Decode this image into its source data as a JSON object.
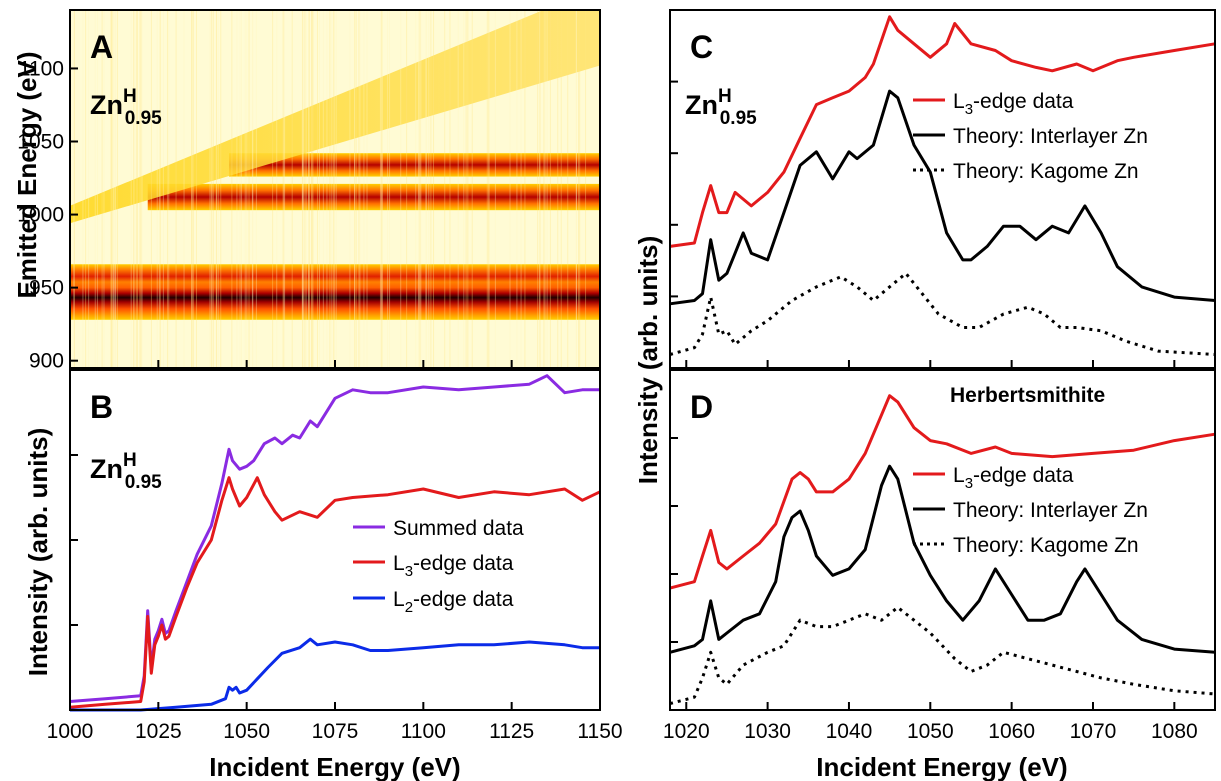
{
  "figure": {
    "ylabel_left_top": "Emitted Energy (eV)",
    "ylabel_left_bottom": "Intensity (arb. units)",
    "ylabel_right": "Intensity (arb. units)",
    "xlabel_left": "Incident Energy (eV)",
    "xlabel_right": "Incident Energy (eV)"
  },
  "panels": {
    "A": {
      "letter": "A",
      "sample_base": "Zn",
      "sample_sup": "H",
      "sample_sub": "0.95"
    },
    "B": {
      "letter": "B",
      "sample_base": "Zn",
      "sample_sup": "H",
      "sample_sub": "0.95"
    },
    "C": {
      "letter": "C",
      "sample_base": "Zn",
      "sample_sup": "H",
      "sample_sub": "0.95"
    },
    "D": {
      "letter": "D",
      "title": "Herbertsmithite"
    }
  },
  "chart_data": [
    {
      "panel": "A",
      "type": "heatmap",
      "xlim": [
        1000,
        1150
      ],
      "ylim": [
        895,
        1140
      ],
      "x_ticks": [
        "1000",
        "1025",
        "1050",
        "1075",
        "1100",
        "1125",
        "1150"
      ],
      "y_ticks": [
        "900",
        "950",
        "1000",
        "1050",
        "1100"
      ],
      "y_tick_values": [
        900,
        950,
        1000,
        1050,
        1100
      ],
      "colormap": [
        "#fffde0",
        "#ffe000",
        "#ff8000",
        "#e00000",
        "#200000"
      ],
      "features": [
        {
          "kind": "elastic_line",
          "x": [
            1000,
            1150
          ],
          "y": [
            1000,
            1150
          ]
        },
        {
          "kind": "band",
          "center": 939,
          "width": 8,
          "x_start": 1000,
          "intensity": 1.0
        },
        {
          "kind": "band",
          "center": 958,
          "width": 8,
          "x_start": 1000,
          "intensity": 0.8
        },
        {
          "kind": "band",
          "center": 1012,
          "width": 6,
          "x_start": 1022,
          "intensity": 0.85
        },
        {
          "kind": "band",
          "center": 1034,
          "width": 6,
          "x_start": 1045,
          "intensity": 0.75
        }
      ]
    },
    {
      "panel": "B",
      "type": "line",
      "xlim": [
        1000,
        1150
      ],
      "ylim": [
        0,
        1.2
      ],
      "x_ticks": [
        "1000",
        "1025",
        "1050",
        "1075",
        "1100",
        "1125",
        "1150"
      ],
      "x_tick_values": [
        1000,
        1025,
        1050,
        1075,
        1100,
        1125,
        1150
      ],
      "legend_position": "middle-right",
      "series": [
        {
          "name": "Summed data",
          "color": "#8a2be2",
          "x": [
            1000,
            1010,
            1020,
            1021,
            1022,
            1023,
            1024,
            1025,
            1026,
            1027,
            1028,
            1030,
            1033,
            1036,
            1040,
            1043,
            1045,
            1046,
            1048,
            1050,
            1052,
            1055,
            1058,
            1060,
            1063,
            1065,
            1068,
            1070,
            1075,
            1080,
            1085,
            1090,
            1100,
            1110,
            1120,
            1130,
            1135,
            1140,
            1145,
            1150
          ],
          "y": [
            0.03,
            0.04,
            0.05,
            0.12,
            0.35,
            0.15,
            0.25,
            0.28,
            0.32,
            0.27,
            0.28,
            0.35,
            0.45,
            0.55,
            0.65,
            0.8,
            0.92,
            0.88,
            0.85,
            0.86,
            0.88,
            0.94,
            0.96,
            0.94,
            0.97,
            0.96,
            1.02,
            1.0,
            1.1,
            1.13,
            1.12,
            1.12,
            1.14,
            1.13,
            1.14,
            1.15,
            1.18,
            1.12,
            1.13,
            1.13
          ]
        },
        {
          "name": "L3-edge data",
          "label_main": "L",
          "label_sub": "3",
          "label_rest": "-edge data",
          "color": "#e31a1c",
          "x": [
            1000,
            1010,
            1020,
            1021,
            1022,
            1023,
            1024,
            1025,
            1026,
            1027,
            1028,
            1030,
            1033,
            1036,
            1040,
            1043,
            1045,
            1046,
            1048,
            1050,
            1053,
            1055,
            1058,
            1060,
            1065,
            1070,
            1075,
            1080,
            1090,
            1100,
            1110,
            1120,
            1130,
            1140,
            1145,
            1150
          ],
          "y": [
            0.01,
            0.02,
            0.03,
            0.1,
            0.33,
            0.13,
            0.23,
            0.26,
            0.3,
            0.25,
            0.26,
            0.33,
            0.43,
            0.52,
            0.6,
            0.74,
            0.82,
            0.78,
            0.72,
            0.75,
            0.82,
            0.76,
            0.7,
            0.67,
            0.7,
            0.68,
            0.74,
            0.75,
            0.76,
            0.78,
            0.75,
            0.77,
            0.76,
            0.78,
            0.74,
            0.77
          ]
        },
        {
          "name": "L2-edge data",
          "label_main": "L",
          "label_sub": "2",
          "label_rest": "-edge data",
          "color": "#0b2be8",
          "x": [
            1000,
            1020,
            1030,
            1040,
            1044,
            1045,
            1046,
            1047,
            1048,
            1050,
            1053,
            1056,
            1060,
            1065,
            1068,
            1070,
            1075,
            1080,
            1085,
            1090,
            1100,
            1110,
            1120,
            1130,
            1140,
            1145,
            1150
          ],
          "y": [
            0.0,
            0.0,
            0.01,
            0.02,
            0.04,
            0.08,
            0.07,
            0.08,
            0.06,
            0.07,
            0.11,
            0.15,
            0.2,
            0.22,
            0.25,
            0.23,
            0.24,
            0.23,
            0.21,
            0.21,
            0.22,
            0.23,
            0.23,
            0.24,
            0.23,
            0.22,
            0.22
          ]
        }
      ]
    },
    {
      "panel": "C",
      "type": "line",
      "xlim": [
        1018,
        1085
      ],
      "ylim": [
        0,
        5.3
      ],
      "x_ticks": [
        "1020",
        "1030",
        "1040",
        "1050",
        "1060",
        "1070",
        "1080"
      ],
      "x_tick_values": [
        1020,
        1030,
        1040,
        1050,
        1060,
        1070,
        1080
      ],
      "legend_position": "top-right",
      "series": [
        {
          "name": "L3-edge data",
          "label_main": "L",
          "label_sub": "3",
          "label_rest": "-edge data",
          "color": "#e31a1c",
          "x": [
            1018,
            1021,
            1022,
            1023,
            1024,
            1025,
            1026,
            1027,
            1028,
            1030,
            1032,
            1034,
            1036,
            1038,
            1040,
            1042,
            1043,
            1045,
            1046,
            1048,
            1050,
            1052,
            1053,
            1055,
            1058,
            1060,
            1063,
            1065,
            1068,
            1070,
            1073,
            1075,
            1080,
            1085
          ],
          "y": [
            1.8,
            1.85,
            2.3,
            2.7,
            2.3,
            2.3,
            2.6,
            2.5,
            2.4,
            2.6,
            2.9,
            3.4,
            3.9,
            4.0,
            4.1,
            4.3,
            4.5,
            5.2,
            5.0,
            4.8,
            4.6,
            4.8,
            5.1,
            4.8,
            4.7,
            4.55,
            4.45,
            4.4,
            4.5,
            4.4,
            4.55,
            4.6,
            4.7,
            4.8
          ]
        },
        {
          "name": "Theory: Interlayer Zn",
          "color": "#000000",
          "x": [
            1018,
            1021,
            1022,
            1023,
            1024,
            1025,
            1026,
            1027,
            1028,
            1030,
            1032,
            1034,
            1036,
            1038,
            1040,
            1041,
            1043,
            1045,
            1046,
            1048,
            1050,
            1052,
            1054,
            1055,
            1057,
            1059,
            1061,
            1063,
            1065,
            1067,
            1069,
            1071,
            1073,
            1076,
            1080,
            1085
          ],
          "y": [
            0.95,
            1.0,
            1.1,
            1.9,
            1.3,
            1.4,
            1.7,
            2.0,
            1.7,
            1.6,
            2.3,
            3.0,
            3.2,
            2.8,
            3.2,
            3.1,
            3.3,
            4.1,
            4.0,
            3.3,
            2.9,
            2.0,
            1.6,
            1.6,
            1.8,
            2.1,
            2.1,
            1.9,
            2.1,
            2.0,
            2.4,
            2.0,
            1.5,
            1.2,
            1.05,
            1.0
          ]
        },
        {
          "name": "Theory: Kagome Zn",
          "color": "#000000",
          "dashed": true,
          "x": [
            1018,
            1021,
            1022,
            1023,
            1024,
            1025,
            1026,
            1027,
            1028,
            1030,
            1033,
            1036,
            1039,
            1041,
            1043,
            1045,
            1047,
            1049,
            1051,
            1054,
            1056,
            1059,
            1062,
            1064,
            1066,
            1068,
            1071,
            1074,
            1078,
            1085
          ],
          "y": [
            0.2,
            0.3,
            0.5,
            1.05,
            0.5,
            0.55,
            0.35,
            0.45,
            0.55,
            0.7,
            1.0,
            1.2,
            1.35,
            1.2,
            1.0,
            1.2,
            1.4,
            1.1,
            0.8,
            0.6,
            0.6,
            0.8,
            0.9,
            0.8,
            0.6,
            0.6,
            0.55,
            0.4,
            0.25,
            0.2
          ]
        }
      ]
    },
    {
      "panel": "D",
      "type": "line",
      "xlim": [
        1018,
        1085
      ],
      "ylim": [
        0,
        5.3
      ],
      "x_ticks": [
        "1020",
        "1030",
        "1040",
        "1050",
        "1060",
        "1070",
        "1080"
      ],
      "x_tick_values": [
        1020,
        1030,
        1040,
        1050,
        1060,
        1070,
        1080
      ],
      "legend_position": "top-right",
      "series": [
        {
          "name": "L3-edge data",
          "label_main": "L",
          "label_sub": "3",
          "label_rest": "-edge data",
          "color": "#e31a1c",
          "x": [
            1018,
            1021,
            1022,
            1023,
            1024,
            1025,
            1027,
            1029,
            1031,
            1033,
            1034,
            1035,
            1036,
            1038,
            1040,
            1042,
            1044,
            1045,
            1046,
            1048,
            1050,
            1052,
            1055,
            1058,
            1060,
            1065,
            1070,
            1075,
            1080,
            1085
          ],
          "y": [
            1.9,
            2.0,
            2.4,
            2.8,
            2.3,
            2.2,
            2.4,
            2.6,
            2.9,
            3.6,
            3.7,
            3.6,
            3.4,
            3.4,
            3.6,
            4.0,
            4.6,
            4.9,
            4.8,
            4.4,
            4.2,
            4.15,
            4.0,
            4.1,
            4.0,
            3.95,
            4.0,
            4.05,
            4.2,
            4.3
          ]
        },
        {
          "name": "Theory: Interlayer Zn",
          "color": "#000000",
          "x": [
            1018,
            1021,
            1022,
            1023,
            1024,
            1025,
            1027,
            1029,
            1031,
            1032,
            1033,
            1034,
            1035,
            1036,
            1038,
            1040,
            1042,
            1044,
            1045,
            1046,
            1048,
            1050,
            1052,
            1054,
            1056,
            1058,
            1060,
            1062,
            1064,
            1066,
            1068,
            1069,
            1071,
            1073,
            1076,
            1080,
            1085
          ],
          "y": [
            0.9,
            1.0,
            1.1,
            1.7,
            1.1,
            1.2,
            1.4,
            1.5,
            2.0,
            2.7,
            3.0,
            3.1,
            2.8,
            2.4,
            2.1,
            2.2,
            2.5,
            3.5,
            3.8,
            3.6,
            2.6,
            2.1,
            1.7,
            1.4,
            1.7,
            2.2,
            1.8,
            1.4,
            1.4,
            1.5,
            2.0,
            2.2,
            1.8,
            1.4,
            1.1,
            0.95,
            0.9
          ]
        },
        {
          "name": "Theory: Kagome Zn",
          "color": "#000000",
          "dashed": true,
          "x": [
            1018,
            1021,
            1022,
            1023,
            1024,
            1025,
            1027,
            1030,
            1032,
            1034,
            1036,
            1038,
            1040,
            1042,
            1044,
            1046,
            1048,
            1050,
            1053,
            1055,
            1057,
            1059,
            1062,
            1065,
            1068,
            1071,
            1075,
            1080,
            1085
          ],
          "y": [
            0.1,
            0.2,
            0.5,
            0.9,
            0.5,
            0.4,
            0.7,
            0.9,
            1.0,
            1.4,
            1.3,
            1.3,
            1.4,
            1.5,
            1.4,
            1.6,
            1.4,
            1.2,
            0.8,
            0.6,
            0.7,
            0.9,
            0.8,
            0.7,
            0.6,
            0.5,
            0.4,
            0.3,
            0.25
          ]
        }
      ]
    }
  ]
}
